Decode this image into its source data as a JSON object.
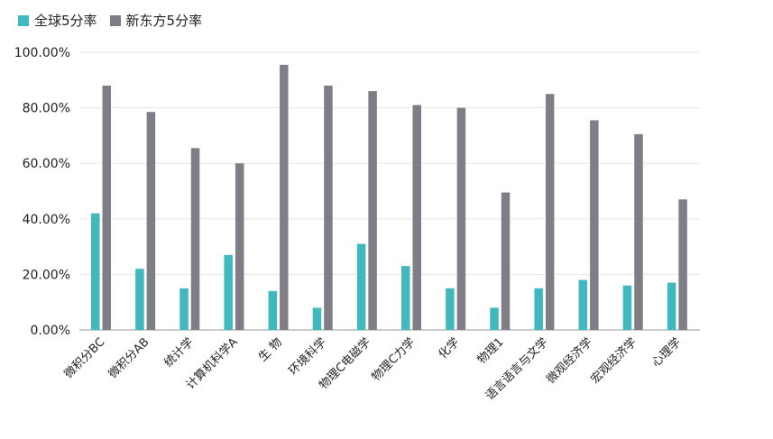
{
  "chart_data": {
    "type": "bar",
    "title": "",
    "xlabel": "",
    "ylabel": "",
    "ylim": [
      0,
      100
    ],
    "yticks": [
      0,
      20,
      40,
      60,
      80,
      100
    ],
    "ytick_labels": [
      "0.00%",
      "20.00%",
      "40.00%",
      "60.00%",
      "80.00%",
      "100.00%"
    ],
    "categories": [
      "微积分BC",
      "微积分AB",
      "统计学",
      "计算机科学A",
      "生 物",
      "环境科学",
      "物理C电磁学",
      "物理C力学",
      "化学",
      "物理1",
      "语言语言与文学",
      "微观经济学",
      "宏观经济学",
      "心理学"
    ],
    "series": [
      {
        "name": "全球5分率",
        "color": "#3fb8be",
        "values": [
          42,
          22,
          15,
          27,
          14,
          8,
          31,
          23,
          15,
          8,
          15,
          18,
          16,
          17
        ]
      },
      {
        "name": "新东方5分率",
        "color": "#7f7e86",
        "values": [
          88,
          78.5,
          65.5,
          60,
          95.5,
          88,
          86,
          81,
          80,
          49.5,
          85,
          75.5,
          70.5,
          47
        ]
      }
    ],
    "legend_position": "top-left",
    "grid": true
  }
}
